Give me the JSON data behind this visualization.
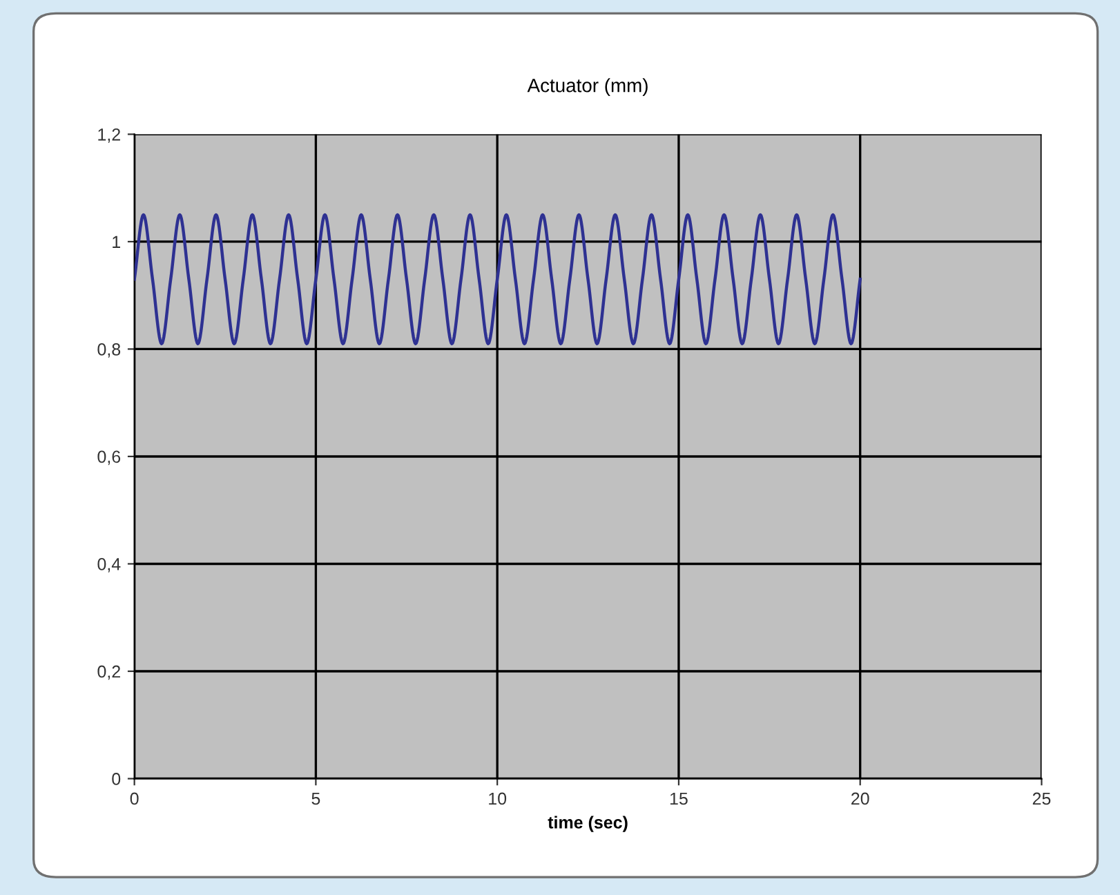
{
  "chart_data": {
    "type": "line",
    "title": "Actuator (mm)",
    "xlabel": "time (sec)",
    "x": [
      0,
      0.25,
      0.5,
      0.75,
      1,
      1.25,
      1.5,
      1.75,
      2,
      2.25,
      2.5,
      2.75,
      3,
      3.25,
      3.5,
      3.75,
      4,
      4.25,
      4.5,
      4.75,
      5,
      5.25,
      5.5,
      5.75,
      6,
      6.25,
      6.5,
      6.75,
      7,
      7.25,
      7.5,
      7.75,
      8,
      8.25,
      8.5,
      8.75,
      9,
      9.25,
      9.5,
      9.75,
      10,
      10.25,
      10.5,
      10.75,
      11,
      11.25,
      11.5,
      11.75,
      12,
      12.25,
      12.5,
      12.75,
      13,
      13.25,
      13.5,
      13.75,
      14,
      14.25,
      14.5,
      14.75,
      15,
      15.25,
      15.5,
      15.75,
      16,
      16.25,
      16.5,
      16.75,
      17,
      17.25,
      17.5,
      17.75,
      18,
      18.25,
      18.5,
      18.75,
      19,
      19.25,
      19.5,
      19.75,
      20
    ],
    "series": [
      {
        "color": "#2e3192",
        "values": [
          0.93,
          1.05,
          0.93,
          0.81,
          0.93,
          1.05,
          0.93,
          0.81,
          0.93,
          1.05,
          0.93,
          0.81,
          0.93,
          1.05,
          0.93,
          0.81,
          0.93,
          1.05,
          0.93,
          0.81,
          0.93,
          1.05,
          0.93,
          0.81,
          0.93,
          1.05,
          0.93,
          0.81,
          0.93,
          1.05,
          0.93,
          0.81,
          0.93,
          1.05,
          0.93,
          0.81,
          0.93,
          1.05,
          0.93,
          0.81,
          0.93,
          1.05,
          0.93,
          0.81,
          0.93,
          1.05,
          0.93,
          0.81,
          0.93,
          1.05,
          0.93,
          0.81,
          0.93,
          1.05,
          0.93,
          0.81,
          0.93,
          1.05,
          0.93,
          0.81,
          0.93,
          1.05,
          0.93,
          0.81,
          0.93,
          1.05,
          0.93,
          0.81,
          0.93,
          1.05,
          0.93,
          0.81,
          0.93,
          1.05,
          0.93,
          0.81,
          0.93,
          1.05,
          0.93,
          0.81,
          0.93
        ]
      }
    ],
    "xlim": [
      0,
      25
    ],
    "xticks": [
      0,
      5,
      10,
      15,
      20,
      25
    ],
    "ylim": [
      0,
      1.2
    ],
    "yticks": [
      0,
      {
        "value": 0.2,
        "label": "0,2"
      },
      {
        "value": 0.4,
        "label": "0,4"
      },
      {
        "value": 0.6,
        "label": "0,6"
      },
      {
        "value": 0.8,
        "label": "0,8"
      },
      1,
      {
        "value": 1.2,
        "label": "1,2"
      }
    ],
    "grid": true,
    "marker": "none",
    "line_style": "solid",
    "legend": false
  }
}
